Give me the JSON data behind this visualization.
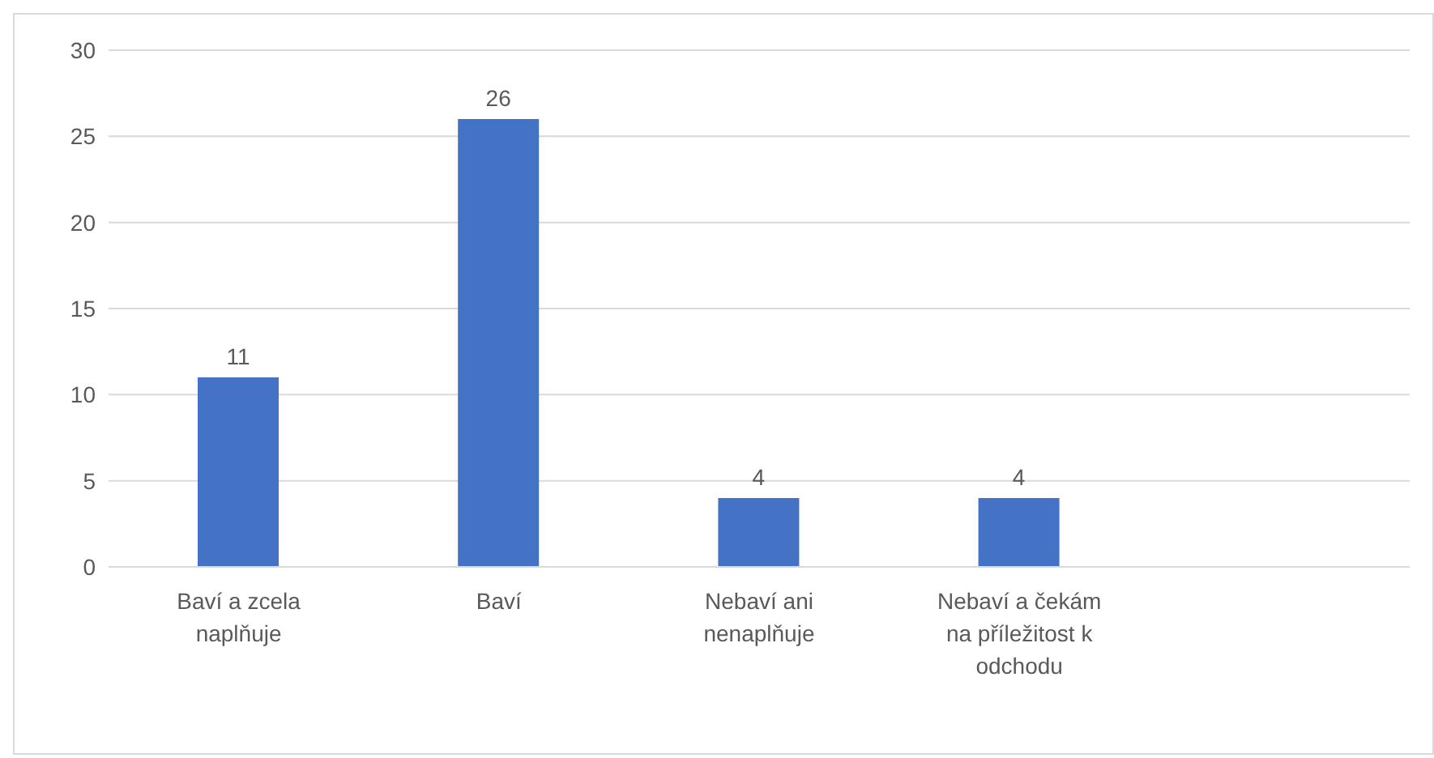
{
  "chart_data": {
    "type": "bar",
    "categories": [
      "Baví a zcela naplňuje",
      "Baví",
      "Nebaví ani nenaplňuje",
      "Nebaví a čekám na příležitost k odchodu",
      null
    ],
    "values": [
      11,
      26,
      4,
      4,
      null
    ],
    "color": "#4472c4",
    "ylim": [
      0,
      30
    ],
    "yticks": [
      0,
      5,
      10,
      15,
      20,
      25,
      30
    ],
    "grid": "y",
    "data_labels": true
  }
}
